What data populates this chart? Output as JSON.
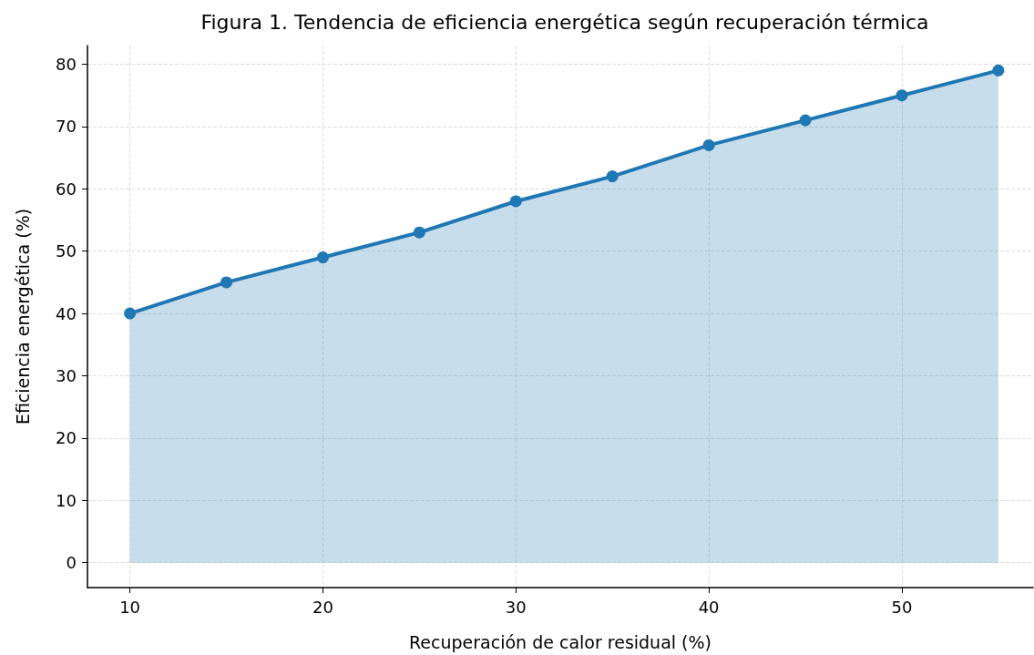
{
  "chart_data": {
    "type": "area",
    "title": "Figura 1. Tendencia de eficiencia energética según recuperación térmica",
    "xlabel": "Recuperación de calor residual (%)",
    "ylabel": "Eficiencia energética (%)",
    "x": [
      10,
      15,
      20,
      25,
      30,
      35,
      40,
      45,
      50,
      55
    ],
    "series": [
      {
        "color": "#1f77b4",
        "values": [
          40,
          45,
          49,
          53,
          58,
          62,
          67,
          71,
          75,
          79
        ]
      }
    ],
    "xlim": [
      7.8,
      56.8
    ],
    "xticks": [
      10,
      20,
      30,
      40,
      50
    ],
    "ylim": [
      -4,
      83
    ],
    "yticks": [
      0,
      10,
      20,
      30,
      40,
      50,
      60,
      70,
      80
    ],
    "grid": true,
    "marker": "circle",
    "line_style": "solid"
  }
}
